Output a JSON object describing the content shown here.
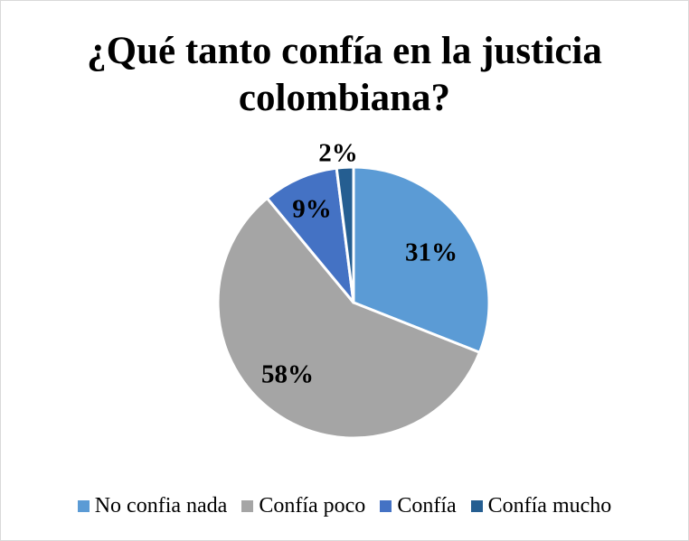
{
  "chart_data": {
    "type": "pie",
    "title": "¿Qué tanto confía en la justicia colombiana?",
    "categories": [
      "No confia nada",
      "Confía poco",
      "Confía",
      "Confía mucho"
    ],
    "values": [
      31,
      58,
      9,
      2
    ],
    "data_labels": [
      "31%",
      "58%",
      "9%",
      "2%"
    ],
    "colors": [
      "#5b9bd5",
      "#a5a5a5",
      "#4472c4",
      "#255e91"
    ],
    "legend_position": "bottom"
  }
}
